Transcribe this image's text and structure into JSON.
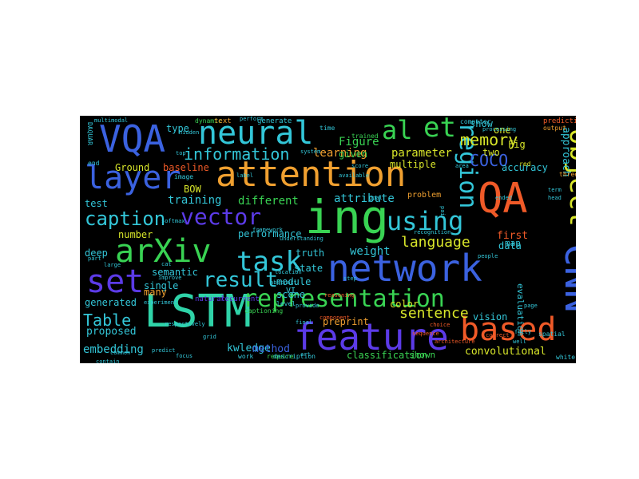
{
  "palette": {
    "background": "#000000",
    "canvas_border": "#ffffff",
    "green": "#39d353",
    "teal": "#2fd3a8",
    "cyan": "#33c6d8",
    "blue": "#3b62e0",
    "indigo": "#5c3be8",
    "orange": "#f0a030",
    "red": "#f05a28",
    "yellow": "#d8e62a",
    "lime": "#9ee63a"
  },
  "words": [
    {
      "text": "attention",
      "size": "large",
      "orientation": "horizontal",
      "color": "#f0a030"
    },
    {
      "text": "network",
      "size": "large",
      "orientation": "horizontal",
      "color": "#3b62e0"
    },
    {
      "text": "LSTM",
      "size": "large",
      "orientation": "horizontal",
      "color": "#2fd3a8"
    },
    {
      "text": "feature",
      "size": "large",
      "orientation": "horizontal",
      "color": "#5c3be8"
    },
    {
      "text": "ing",
      "size": "large",
      "orientation": "horizontal",
      "color": "#39d353"
    },
    {
      "text": "QA",
      "size": "large",
      "orientation": "horizontal",
      "color": "#f05a28"
    },
    {
      "text": "neural",
      "size": "large",
      "orientation": "horizontal",
      "color": "#33c6d8"
    },
    {
      "text": "VQA",
      "size": "large",
      "orientation": "horizontal",
      "color": "#3b62e0"
    },
    {
      "text": "layer",
      "size": "large",
      "orientation": "horizontal",
      "color": "#3b62e0"
    },
    {
      "text": "arXiv",
      "size": "large",
      "orientation": "horizontal",
      "color": "#39d353"
    },
    {
      "text": "task",
      "size": "large",
      "orientation": "horizontal",
      "color": "#33c6d8"
    },
    {
      "text": "based",
      "size": "large",
      "orientation": "horizontal",
      "color": "#f05a28"
    },
    {
      "text": "object",
      "size": "large",
      "orientation": "vertical",
      "color": "#d8e62a"
    },
    {
      "text": "CNN",
      "size": "large",
      "orientation": "vertical",
      "color": "#3b62e0"
    },
    {
      "text": "al",
      "size": "large",
      "orientation": "horizontal",
      "color": "#39d353"
    },
    {
      "text": "et",
      "size": "large",
      "orientation": "horizontal",
      "color": "#39d353"
    },
    {
      "text": "set",
      "size": "large",
      "orientation": "horizontal",
      "color": "#5c3be8"
    },
    {
      "text": "representation",
      "size": "medium",
      "orientation": "horizontal",
      "color": "#39d353"
    },
    {
      "text": "result",
      "size": "medium",
      "orientation": "horizontal",
      "color": "#33c6d8"
    },
    {
      "text": "using",
      "size": "medium",
      "orientation": "horizontal",
      "color": "#33c6d8"
    },
    {
      "text": "vector",
      "size": "medium",
      "orientation": "horizontal",
      "color": "#5c3be8"
    },
    {
      "text": "caption",
      "size": "medium",
      "orientation": "horizontal",
      "color": "#33c6d8"
    },
    {
      "text": "region",
      "size": "medium",
      "orientation": "vertical",
      "color": "#33c6d8"
    },
    {
      "text": "information",
      "size": "medium",
      "orientation": "horizontal",
      "color": "#33c6d8"
    },
    {
      "text": "language",
      "size": "medium",
      "orientation": "horizontal",
      "color": "#d8e62a"
    },
    {
      "text": "sentence",
      "size": "medium",
      "orientation": "horizontal",
      "color": "#d8e62a"
    },
    {
      "text": "memory",
      "size": "medium",
      "orientation": "horizontal",
      "color": "#d8e62a"
    },
    {
      "text": "COCO",
      "size": "medium",
      "orientation": "horizontal",
      "color": "#3b62e0"
    },
    {
      "text": "Table",
      "size": "medium",
      "orientation": "horizontal",
      "color": "#33c6d8"
    },
    {
      "text": "approach",
      "size": "small",
      "orientation": "vertical",
      "color": "#33c6d8"
    },
    {
      "text": "training",
      "size": "small",
      "orientation": "horizontal",
      "color": "#33c6d8"
    },
    {
      "text": "different",
      "size": "small",
      "orientation": "horizontal",
      "color": "#39d353"
    },
    {
      "text": "attribute",
      "size": "small",
      "orientation": "horizontal",
      "color": "#33c6d8"
    },
    {
      "text": "performance",
      "size": "small",
      "orientation": "horizontal",
      "color": "#33c6d8"
    },
    {
      "text": "weight",
      "size": "small",
      "orientation": "horizontal",
      "color": "#33c6d8"
    },
    {
      "text": "proposed",
      "size": "small",
      "orientation": "horizontal",
      "color": "#33c6d8"
    },
    {
      "text": "embedding",
      "size": "small",
      "orientation": "horizontal",
      "color": "#33c6d8"
    },
    {
      "text": "kwledge",
      "size": "small",
      "orientation": "horizontal",
      "color": "#33c6d8"
    },
    {
      "text": "method",
      "size": "small",
      "orientation": "horizontal",
      "color": "#3b62e0"
    },
    {
      "text": "convolutional",
      "size": "small",
      "orientation": "horizontal",
      "color": "#d8e62a"
    },
    {
      "text": "learning",
      "size": "small",
      "orientation": "horizontal",
      "color": "#f0a030"
    },
    {
      "text": "parameter",
      "size": "small",
      "orientation": "horizontal",
      "color": "#d8e62a"
    },
    {
      "text": "multiple",
      "size": "small",
      "orientation": "horizontal",
      "color": "#d8e62a"
    },
    {
      "text": "Figure",
      "size": "small",
      "orientation": "horizontal",
      "color": "#39d353"
    },
    {
      "text": "given",
      "size": "small",
      "orientation": "horizontal",
      "color": "#39d353"
    },
    {
      "text": "accuracy",
      "size": "small",
      "orientation": "horizontal",
      "color": "#33c6d8"
    },
    {
      "text": "first",
      "size": "small",
      "orientation": "horizontal",
      "color": "#f05a28"
    },
    {
      "text": "data",
      "size": "small",
      "orientation": "horizontal",
      "color": "#33c6d8"
    },
    {
      "text": "vision",
      "size": "small",
      "orientation": "horizontal",
      "color": "#33c6d8"
    },
    {
      "text": "color",
      "size": "small",
      "orientation": "horizontal",
      "color": "#d8e62a"
    },
    {
      "text": "preprint",
      "size": "small",
      "orientation": "horizontal",
      "color": "#f0a030"
    },
    {
      "text": "module",
      "size": "small",
      "orientation": "horizontal",
      "color": "#33c6d8"
    },
    {
      "text": "state",
      "size": "small",
      "orientation": "horizontal",
      "color": "#33c6d8"
    },
    {
      "text": "truth",
      "size": "small",
      "orientation": "horizontal",
      "color": "#33c6d8"
    },
    {
      "text": "scene",
      "size": "small",
      "orientation": "horizontal",
      "color": "#33c6d8"
    },
    {
      "text": "semantic",
      "size": "small",
      "orientation": "horizontal",
      "color": "#33c6d8"
    },
    {
      "text": "single",
      "size": "small",
      "orientation": "horizontal",
      "color": "#33c6d8"
    },
    {
      "text": "many",
      "size": "small",
      "orientation": "horizontal",
      "color": "#f0a030"
    },
    {
      "text": "generated",
      "size": "small",
      "orientation": "horizontal",
      "color": "#33c6d8"
    },
    {
      "text": "number",
      "size": "small",
      "orientation": "horizontal",
      "color": "#d8e62a"
    },
    {
      "text": "Ground",
      "size": "small",
      "orientation": "horizontal",
      "color": "#d8e62a"
    },
    {
      "text": "baseline",
      "size": "small",
      "orientation": "horizontal",
      "color": "#f05a28"
    },
    {
      "text": "type",
      "size": "small",
      "orientation": "horizontal",
      "color": "#33c6d8"
    },
    {
      "text": "show",
      "size": "small",
      "orientation": "horizontal",
      "color": "#33c6d8"
    },
    {
      "text": "one",
      "size": "small",
      "orientation": "horizontal",
      "color": "#d8e62a"
    },
    {
      "text": "two",
      "size": "small",
      "orientation": "horizontal",
      "color": "#d8e62a"
    },
    {
      "text": "Fig",
      "size": "small",
      "orientation": "horizontal",
      "color": "#d8e62a"
    },
    {
      "text": "deep",
      "size": "small",
      "orientation": "horizontal",
      "color": "#33c6d8"
    },
    {
      "text": "test",
      "size": "small",
      "orientation": "horizontal",
      "color": "#33c6d8"
    },
    {
      "text": "BOW",
      "size": "small",
      "orientation": "horizontal",
      "color": "#d8e62a"
    },
    {
      "text": "problem",
      "size": "small",
      "orientation": "horizontal",
      "color": "#f0a030"
    },
    {
      "text": "map",
      "size": "small",
      "orientation": "horizontal",
      "color": "#33c6d8"
    },
    {
      "text": "evaluation",
      "size": "small",
      "orientation": "vertical",
      "color": "#33c6d8"
    },
    {
      "text": "VI",
      "size": "small",
      "orientation": "horizontal",
      "color": "#33c6d8"
    },
    {
      "text": "classification",
      "size": "small",
      "orientation": "horizontal",
      "color": "#39d353"
    },
    {
      "text": "shown",
      "size": "small",
      "orientation": "horizontal",
      "color": "#39d353"
    },
    {
      "text": "dynamic",
      "size": "tiny",
      "orientation": "horizontal",
      "color": "#39d353"
    },
    {
      "text": "text",
      "size": "tiny",
      "orientation": "horizontal",
      "color": "#f0a030"
    },
    {
      "text": "generate",
      "size": "tiny",
      "orientation": "horizontal",
      "color": "#33c6d8"
    },
    {
      "text": "prediction",
      "size": "tiny",
      "orientation": "horizontal",
      "color": "#f05a28"
    },
    {
      "text": "output",
      "size": "tiny",
      "orientation": "horizontal",
      "color": "#f0a030"
    },
    {
      "text": "time",
      "size": "tiny",
      "orientation": "horizontal",
      "color": "#33c6d8"
    },
    {
      "text": "trained",
      "size": "tiny",
      "orientation": "horizontal",
      "color": "#39d353"
    },
    {
      "text": "red",
      "size": "tiny",
      "orientation": "horizontal",
      "color": "#d8e62a"
    },
    {
      "text": "three",
      "size": "tiny",
      "orientation": "horizontal",
      "color": "#f0a030"
    },
    {
      "text": "natural",
      "size": "tiny",
      "orientation": "horizontal",
      "color": "#5c3be8"
    },
    {
      "text": "recurrent",
      "size": "tiny",
      "orientation": "horizontal",
      "color": "#5c3be8"
    },
    {
      "text": "captioning",
      "size": "tiny",
      "orientation": "horizontal",
      "color": "#39d353"
    },
    {
      "text": "spatial",
      "size": "tiny",
      "orientation": "horizontal",
      "color": "#33c6d8"
    },
    {
      "text": "level",
      "size": "tiny",
      "orientation": "horizontal",
      "color": "#33c6d8"
    },
    {
      "text": "work",
      "size": "tiny",
      "orientation": "horizontal",
      "color": "#33c6d8"
    },
    {
      "text": "require",
      "size": "tiny",
      "orientation": "horizontal",
      "color": "#39d353"
    },
    {
      "text": "description",
      "size": "tiny",
      "orientation": "horizontal",
      "color": "#33c6d8"
    },
    {
      "text": "DAQUAR",
      "size": "tiny",
      "orientation": "vertical",
      "color": "#33c6d8"
    },
    {
      "text": "hidden",
      "size": "tiny",
      "orientation": "horizontal",
      "color": "#33c6d8"
    },
    {
      "text": "top",
      "size": "tiny",
      "orientation": "horizontal",
      "color": "#33c6d8"
    },
    {
      "text": "end",
      "size": "tiny",
      "orientation": "horizontal",
      "color": "#33c6d8"
    },
    {
      "text": "image",
      "size": "tiny",
      "orientation": "horizontal",
      "color": "#33c6d8"
    },
    {
      "text": "part",
      "size": "tiny",
      "orientation": "horizontal",
      "color": "#33c6d8"
    },
    {
      "text": "large",
      "size": "tiny",
      "orientation": "horizontal",
      "color": "#33c6d8"
    },
    {
      "text": "cat",
      "size": "tiny",
      "orientation": "horizontal",
      "color": "#33c6d8"
    },
    {
      "text": "computer",
      "size": "tiny",
      "orientation": "horizontal",
      "color": "#33c6d8"
    },
    {
      "text": "processing",
      "size": "tiny",
      "orientation": "horizontal",
      "color": "#33c6d8"
    },
    {
      "text": "white",
      "size": "tiny",
      "orientation": "horizontal",
      "color": "#33c6d8"
    },
    {
      "text": "softmax",
      "size": "tiny",
      "orientation": "horizontal",
      "color": "#33c6d8"
    },
    {
      "text": "system",
      "size": "tiny",
      "orientation": "horizontal",
      "color": "#33c6d8"
    },
    {
      "text": "recognition",
      "size": "tiny",
      "orientation": "horizontal",
      "color": "#33c6d8"
    },
    {
      "text": "ended",
      "size": "tiny",
      "orientation": "horizontal",
      "color": "#33c6d8"
    },
    {
      "text": "people",
      "size": "tiny",
      "orientation": "horizontal",
      "color": "#33c6d8"
    },
    {
      "text": "pair",
      "size": "tiny",
      "orientation": "vertical",
      "color": "#33c6d8"
    },
    {
      "text": "provide",
      "size": "tiny",
      "orientation": "horizontal",
      "color": "#33c6d8"
    },
    {
      "text": "component",
      "size": "tiny",
      "orientation": "horizontal",
      "color": "#f05a28"
    },
    {
      "text": "sequence",
      "size": "tiny",
      "orientation": "horizontal",
      "color": "#f05a28"
    },
    {
      "text": "choice",
      "size": "tiny",
      "orientation": "horizontal",
      "color": "#f05a28"
    },
    {
      "text": "architecture",
      "size": "tiny",
      "orientation": "horizontal",
      "color": "#f05a28"
    },
    {
      "text": "correct",
      "size": "tiny",
      "orientation": "horizontal",
      "color": "#f05a28"
    },
    {
      "text": "area",
      "size": "tiny",
      "orientation": "horizontal",
      "color": "#33c6d8"
    },
    {
      "text": "fully",
      "size": "tiny",
      "orientation": "horizontal",
      "color": "#33c6d8"
    },
    {
      "text": "well",
      "size": "tiny",
      "orientation": "horizontal",
      "color": "#33c6d8"
    },
    {
      "text": "page",
      "size": "tiny",
      "orientation": "horizontal",
      "color": "#33c6d8"
    },
    {
      "text": "multimodal",
      "size": "tiny",
      "orientation": "horizontal",
      "color": "#33c6d8"
    },
    {
      "text": "perform",
      "size": "tiny",
      "orientation": "horizontal",
      "color": "#33c6d8"
    },
    {
      "text": "understanding",
      "size": "tiny",
      "orientation": "horizontal",
      "color": "#33c6d8"
    },
    {
      "text": "framework",
      "size": "tiny",
      "orientation": "horizontal",
      "color": "#33c6d8"
    },
    {
      "text": "experiment",
      "size": "tiny",
      "orientation": "horizontal",
      "color": "#33c6d8"
    },
    {
      "text": "respectively",
      "size": "tiny",
      "orientation": "horizontal",
      "color": "#33c6d8"
    },
    {
      "text": "common",
      "size": "tiny",
      "orientation": "horizontal",
      "color": "#33c6d8"
    },
    {
      "text": "predict",
      "size": "tiny",
      "orientation": "horizontal",
      "color": "#33c6d8"
    },
    {
      "text": "focus",
      "size": "tiny",
      "orientation": "horizontal",
      "color": "#33c6d8"
    },
    {
      "text": "reasoning",
      "size": "tiny",
      "orientation": "horizontal",
      "color": "#f05a28"
    },
    {
      "text": "final",
      "size": "tiny",
      "orientation": "horizontal",
      "color": "#33c6d8"
    },
    {
      "text": "step",
      "size": "tiny",
      "orientation": "horizontal",
      "color": "#33c6d8"
    },
    {
      "text": "label",
      "size": "tiny",
      "orientation": "horizontal",
      "color": "#33c6d8"
    },
    {
      "text": "abstract",
      "size": "tiny",
      "orientation": "horizontal",
      "color": "#33c6d8"
    },
    {
      "text": "improve",
      "size": "tiny",
      "orientation": "horizontal",
      "color": "#33c6d8"
    },
    {
      "text": "contain",
      "size": "tiny",
      "orientation": "horizontal",
      "color": "#33c6d8"
    },
    {
      "text": "grid",
      "size": "tiny",
      "orientation": "horizontal",
      "color": "#33c6d8"
    },
    {
      "text": "score",
      "size": "tiny",
      "orientation": "horizontal",
      "color": "#33c6d8"
    },
    {
      "text": "art",
      "size": "tiny",
      "orientation": "horizontal",
      "color": "#33c6d8"
    },
    {
      "text": "location",
      "size": "tiny",
      "orientation": "horizontal",
      "color": "#33c6d8"
    },
    {
      "text": "available",
      "size": "tiny",
      "orientation": "horizontal",
      "color": "#33c6d8"
    },
    {
      "text": "goal",
      "size": "tiny",
      "orientation": "horizontal",
      "color": "#33c6d8"
    },
    {
      "text": "term",
      "size": "tiny",
      "orientation": "horizontal",
      "color": "#33c6d8"
    },
    {
      "text": "head",
      "size": "tiny",
      "orientation": "horizontal",
      "color": "#33c6d8"
    }
  ]
}
